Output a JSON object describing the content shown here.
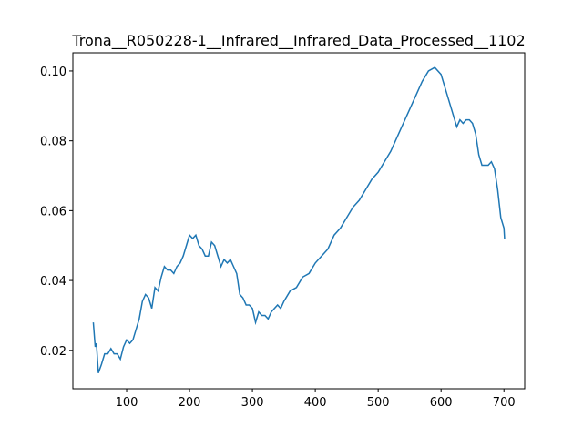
{
  "chart_data": {
    "type": "line",
    "title": "Trona__R050228-1__Infrared__Infrared_Data_Processed__1102",
    "x": [
      47,
      50,
      52,
      55,
      60,
      65,
      70,
      75,
      80,
      85,
      90,
      95,
      100,
      105,
      110,
      115,
      120,
      125,
      130,
      135,
      140,
      145,
      150,
      155,
      160,
      165,
      170,
      175,
      180,
      185,
      190,
      195,
      200,
      205,
      210,
      215,
      220,
      225,
      230,
      235,
      240,
      245,
      250,
      255,
      260,
      265,
      270,
      275,
      280,
      285,
      290,
      295,
      300,
      305,
      310,
      315,
      320,
      325,
      330,
      335,
      340,
      345,
      350,
      360,
      370,
      380,
      390,
      400,
      410,
      420,
      430,
      440,
      450,
      460,
      470,
      480,
      490,
      500,
      510,
      520,
      530,
      540,
      550,
      560,
      570,
      580,
      590,
      600,
      610,
      620,
      625,
      630,
      635,
      640,
      645,
      650,
      655,
      660,
      665,
      670,
      675,
      680,
      685,
      690,
      695,
      700,
      701
    ],
    "series": [
      {
        "color": "#1f77b4",
        "values": [
          0.028,
          0.021,
          0.022,
          0.0135,
          0.016,
          0.019,
          0.019,
          0.0205,
          0.019,
          0.019,
          0.0175,
          0.021,
          0.023,
          0.022,
          0.023,
          0.026,
          0.029,
          0.034,
          0.036,
          0.035,
          0.032,
          0.038,
          0.037,
          0.041,
          0.044,
          0.043,
          0.043,
          0.042,
          0.044,
          0.045,
          0.047,
          0.05,
          0.053,
          0.052,
          0.053,
          0.05,
          0.049,
          0.047,
          0.047,
          0.051,
          0.05,
          0.047,
          0.044,
          0.046,
          0.045,
          0.046,
          0.044,
          0.042,
          0.036,
          0.035,
          0.033,
          0.033,
          0.032,
          0.028,
          0.031,
          0.03,
          0.03,
          0.029,
          0.031,
          0.032,
          0.033,
          0.032,
          0.034,
          0.037,
          0.038,
          0.041,
          0.042,
          0.045,
          0.047,
          0.049,
          0.053,
          0.055,
          0.058,
          0.061,
          0.063,
          0.066,
          0.069,
          0.071,
          0.074,
          0.077,
          0.081,
          0.085,
          0.089,
          0.093,
          0.097,
          0.1,
          0.101,
          0.099,
          0.093,
          0.087,
          0.084,
          0.086,
          0.085,
          0.086,
          0.086,
          0.085,
          0.082,
          0.076,
          0.073,
          0.073,
          0.073,
          0.074,
          0.072,
          0.066,
          0.058,
          0.055,
          0.052
        ]
      }
    ],
    "xlim": [
      14.5,
      733
    ],
    "ylim": [
      0.009,
      0.1052
    ],
    "xticks": [
      100,
      200,
      300,
      400,
      500,
      600,
      700
    ],
    "yticks": [
      0.02,
      0.04,
      0.06,
      0.08,
      {
        "value": 0.1,
        "label": "0.10"
      }
    ]
  }
}
